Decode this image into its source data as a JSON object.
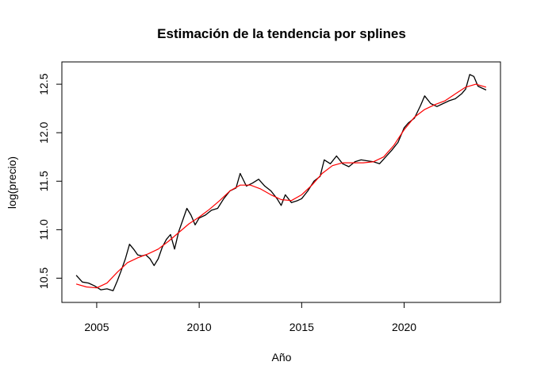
{
  "chart_data": {
    "type": "line",
    "title": "Estimación de la tendencia por splines",
    "xlabel": "Año",
    "ylabel": "log(precio)",
    "xlim": [
      2003.3,
      2024.7
    ],
    "ylim": [
      10.25,
      12.73
    ],
    "x_ticks": [
      2005,
      2010,
      2015,
      2020
    ],
    "y_ticks": [
      10.5,
      11.0,
      11.5,
      12.0,
      12.5
    ],
    "x_tick_labels": [
      "2005",
      "2010",
      "2015",
      "2020"
    ],
    "y_tick_labels": [
      "10.5",
      "11.0",
      "11.5",
      "12.0",
      "12.5"
    ],
    "grid": false,
    "series": [
      {
        "color": "#000000",
        "x": [
          2004.0,
          2004.3,
          2004.6,
          2004.9,
          2005.2,
          2005.5,
          2005.8,
          2006.0,
          2006.2,
          2006.4,
          2006.6,
          2006.8,
          2007.0,
          2007.2,
          2007.4,
          2007.6,
          2007.8,
          2008.0,
          2008.2,
          2008.4,
          2008.6,
          2008.8,
          2009.0,
          2009.2,
          2009.4,
          2009.6,
          2009.8,
          2010.0,
          2010.3,
          2010.6,
          2010.9,
          2011.2,
          2011.5,
          2011.8,
          2012.0,
          2012.3,
          2012.6,
          2012.9,
          2013.2,
          2013.5,
          2013.8,
          2014.0,
          2014.2,
          2014.5,
          2014.8,
          2015.0,
          2015.3,
          2015.6,
          2015.9,
          2016.1,
          2016.4,
          2016.7,
          2017.0,
          2017.3,
          2017.6,
          2017.9,
          2018.2,
          2018.5,
          2018.8,
          2019.1,
          2019.4,
          2019.7,
          2020.0,
          2020.2,
          2020.5,
          2020.8,
          2021.0,
          2021.3,
          2021.6,
          2021.9,
          2022.2,
          2022.5,
          2022.8,
          2023.0,
          2023.2,
          2023.4,
          2023.6,
          2023.8,
          2024.0
        ],
        "values": [
          10.53,
          10.46,
          10.45,
          10.42,
          10.38,
          10.39,
          10.37,
          10.47,
          10.58,
          10.7,
          10.85,
          10.8,
          10.74,
          10.73,
          10.74,
          10.7,
          10.63,
          10.7,
          10.82,
          10.9,
          10.95,
          10.8,
          10.98,
          11.1,
          11.22,
          11.15,
          11.05,
          11.12,
          11.15,
          11.2,
          11.22,
          11.32,
          11.4,
          11.43,
          11.58,
          11.45,
          11.48,
          11.52,
          11.45,
          11.4,
          11.32,
          11.25,
          11.36,
          11.28,
          11.3,
          11.32,
          11.4,
          11.5,
          11.55,
          11.72,
          11.68,
          11.76,
          11.68,
          11.65,
          11.7,
          11.72,
          11.71,
          11.7,
          11.68,
          11.75,
          11.82,
          11.9,
          12.05,
          12.1,
          12.15,
          12.28,
          12.38,
          12.3,
          12.27,
          12.3,
          12.33,
          12.35,
          12.4,
          12.45,
          12.6,
          12.58,
          12.48,
          12.46,
          12.44
        ]
      },
      {
        "color": "#ff0000",
        "x": [
          2004.0,
          2004.5,
          2005.0,
          2005.5,
          2006.0,
          2006.5,
          2007.0,
          2007.5,
          2008.0,
          2008.5,
          2009.0,
          2009.5,
          2010.0,
          2010.5,
          2011.0,
          2011.5,
          2012.0,
          2012.5,
          2013.0,
          2013.5,
          2014.0,
          2014.5,
          2015.0,
          2015.5,
          2016.0,
          2016.5,
          2017.0,
          2017.5,
          2018.0,
          2018.5,
          2019.0,
          2019.5,
          2020.0,
          2020.5,
          2021.0,
          2021.5,
          2022.0,
          2022.5,
          2023.0,
          2023.5,
          2024.0
        ],
        "values": [
          10.44,
          10.41,
          10.4,
          10.45,
          10.56,
          10.66,
          10.71,
          10.75,
          10.8,
          10.88,
          10.97,
          11.06,
          11.13,
          11.21,
          11.3,
          11.4,
          11.46,
          11.46,
          11.42,
          11.36,
          11.31,
          11.3,
          11.36,
          11.46,
          11.58,
          11.66,
          11.69,
          11.69,
          11.69,
          11.7,
          11.75,
          11.87,
          12.03,
          12.16,
          12.24,
          12.29,
          12.33,
          12.4,
          12.47,
          12.5,
          12.47
        ]
      }
    ]
  }
}
